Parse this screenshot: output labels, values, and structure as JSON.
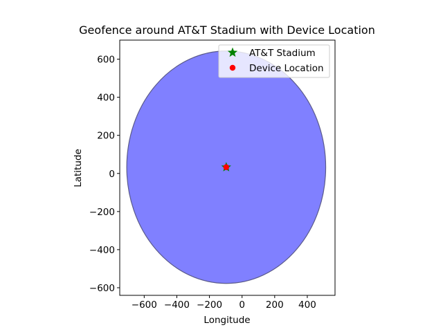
{
  "chart_data": {
    "type": "scatter",
    "title": "Geofence around AT&T Stadium with Device Location",
    "xlabel": "Longitude",
    "ylabel": "Latitude",
    "xlim": [
      -750,
      570
    ],
    "ylim": [
      -640,
      700
    ],
    "xticks": [
      -600,
      -400,
      -200,
      0,
      200,
      400
    ],
    "yticks": [
      -600,
      -400,
      -200,
      0,
      200,
      400,
      600
    ],
    "grid": false,
    "legend_position": "top-right",
    "geofence": {
      "shape": "circle",
      "center": [
        -97.09,
        32.75
      ],
      "radius": 610,
      "fill_color": "#8080ff",
      "edge_color": "#5a5a8a"
    },
    "series": [
      {
        "name": "AT&T Stadium",
        "marker": "star",
        "color": "#008000",
        "x": -97.09,
        "y": 32.75
      },
      {
        "name": "Device Location",
        "marker": "circle",
        "color": "#ff0000",
        "x": -97.1,
        "y": 32.74
      }
    ]
  }
}
